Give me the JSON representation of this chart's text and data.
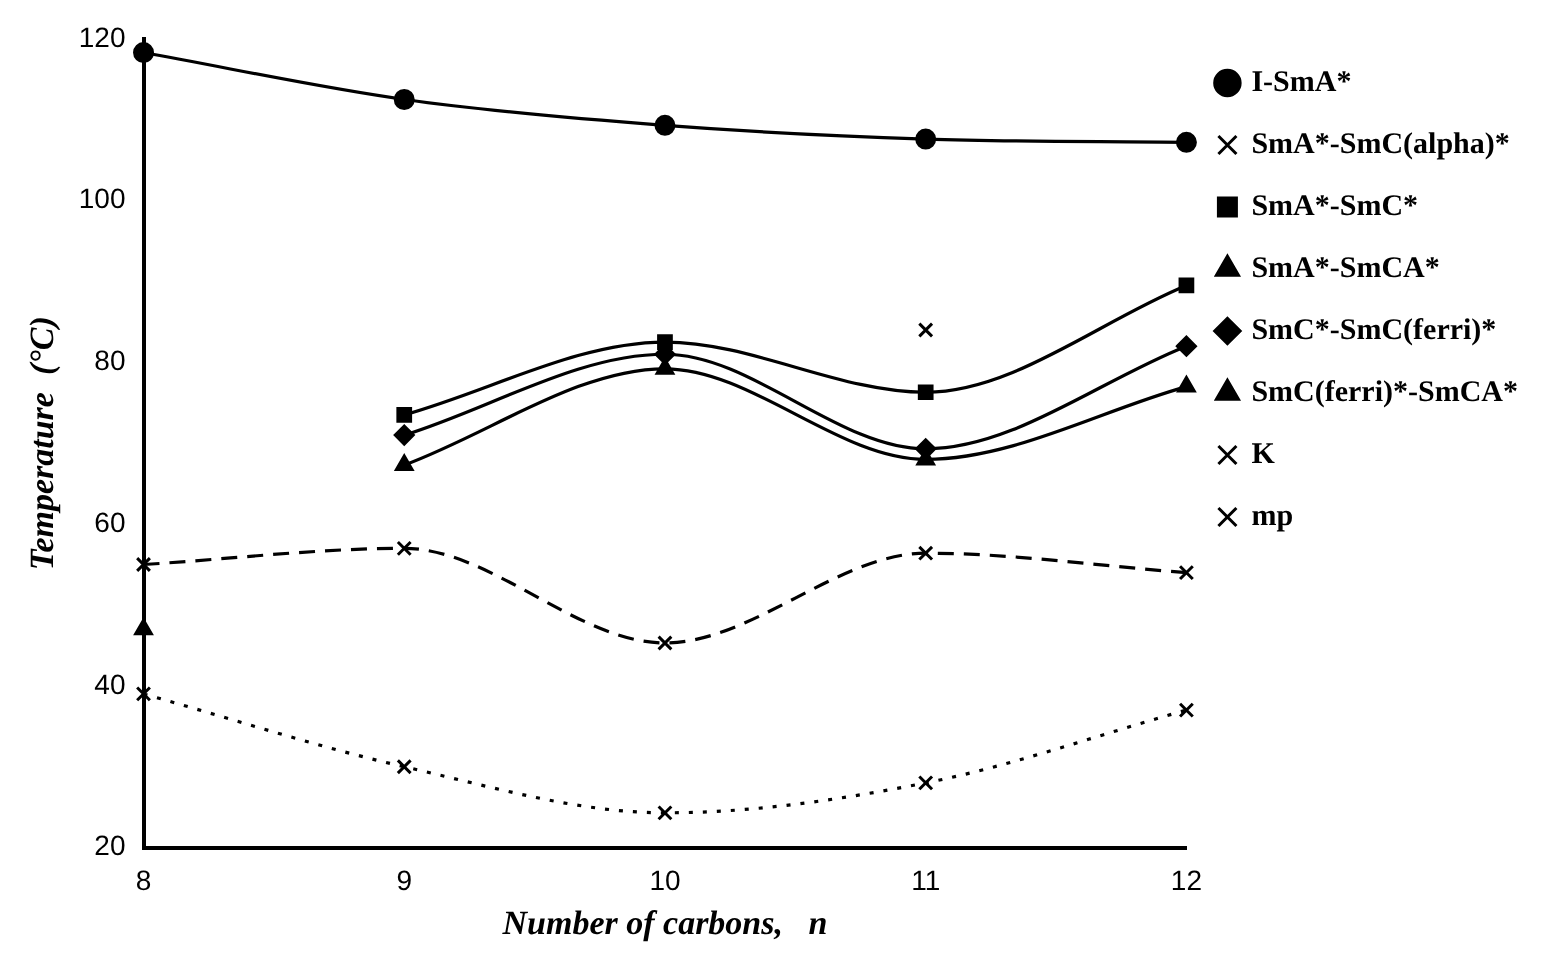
{
  "chart_data": {
    "type": "line",
    "xlabel": "Number of carbons,   n",
    "ylabel": "Temperature  (°C)",
    "x": [
      8,
      9,
      10,
      11,
      12
    ],
    "xlim": [
      8,
      12
    ],
    "xticks": [
      8,
      9,
      10,
      11,
      12
    ],
    "ylim": [
      20,
      120
    ],
    "yticks": [
      20,
      40,
      60,
      80,
      100,
      120
    ],
    "grid": false,
    "legend": "right",
    "series": [
      {
        "name": "I-SmA*",
        "color": "#000000",
        "marker": "circle",
        "line_style": "solid",
        "values": [
          118.3,
          112.5,
          109.3,
          107.6,
          107.2
        ]
      },
      {
        "name": "SmA*-SmC(alpha)*",
        "color": "#000000",
        "marker": "cross",
        "line_style": "solid",
        "values": [
          null,
          null,
          null,
          84,
          null
        ]
      },
      {
        "name": "SmA*-SmC*",
        "color": "#000000",
        "marker": "square",
        "line_style": "solid",
        "values": [
          null,
          73.5,
          82.5,
          76.3,
          89.5
        ]
      },
      {
        "name": "SmA*-SmCA*",
        "color": "#000000",
        "marker": "triangle",
        "line_style": "solid",
        "values": [
          47,
          null,
          null,
          null,
          null
        ]
      },
      {
        "name": "SmC*-SmC(ferri)*",
        "color": "#000000",
        "marker": "diamond",
        "line_style": "solid",
        "values": [
          null,
          71,
          81,
          69.3,
          82
        ]
      },
      {
        "name": "SmC(ferri)*-SmCA*",
        "color": "#000000",
        "marker": "triangle",
        "line_style": "solid",
        "values": [
          null,
          67.3,
          79.2,
          68,
          77
        ]
      },
      {
        "name": "K",
        "color": "#000000",
        "marker": "cross",
        "line_style": "dotted",
        "values": [
          39,
          30,
          24.3,
          28,
          37
        ]
      },
      {
        "name": "mp",
        "color": "#000000",
        "marker": "cross",
        "line_style": "dashed",
        "values": [
          55,
          57,
          45.3,
          56.4,
          54
        ]
      }
    ]
  }
}
